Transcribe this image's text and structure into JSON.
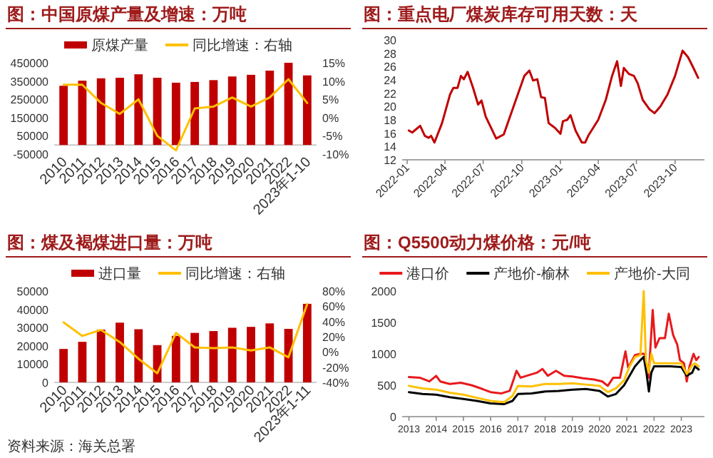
{
  "chart_data": [
    {
      "type": "bar",
      "title": "图：中国原煤产量及增速：万吨",
      "legend": "top",
      "categories": [
        "2010",
        "2011",
        "2012",
        "2013",
        "2014",
        "2015",
        "2016",
        "2017",
        "2018",
        "2019",
        "2020",
        "2021",
        "2022",
        "2023年1-10"
      ],
      "series": [
        {
          "name": "原煤产量",
          "color": "#c00000",
          "values": [
            324000,
            352000,
            365000,
            368000,
            387000,
            368000,
            341000,
            345000,
            355000,
            375000,
            384000,
            407000,
            450000,
            381000
          ]
        },
        {
          "name": "同比增速：右轴",
          "type": "line",
          "axis": "y2",
          "color": "#ffc000",
          "values": [
            9,
            9,
            4,
            1,
            5,
            -5,
            -9,
            2.5,
            3,
            5.5,
            3,
            5.5,
            10.5,
            4
          ]
        }
      ],
      "ylim": [
        -50000,
        450000
      ],
      "yticks": [
        -50000,
        50000,
        150000,
        250000,
        350000,
        450000
      ],
      "y2lim": [
        -10,
        15
      ],
      "y2ticks": [
        {
          "value": -10,
          "label": "-10%"
        },
        {
          "value": -5,
          "label": "-5%"
        },
        {
          "value": 0,
          "label": "0%"
        },
        {
          "value": 5,
          "label": "5%"
        },
        {
          "value": 10,
          "label": "10%"
        },
        {
          "value": 15,
          "label": "15%"
        }
      ]
    },
    {
      "type": "line",
      "title": "图：重点电厂煤炭库存可用天数：天",
      "series": [
        {
          "color": "#c00000",
          "x": [
            "2022-01-05",
            "2022-01-13",
            "2022-02-01",
            "2022-02-12",
            "2022-02-21",
            "2022-02-27",
            "2022-03-07",
            "2022-03-25",
            "2022-04-13",
            "2022-04-21",
            "2022-05-01",
            "2022-05-09",
            "2022-05-16",
            "2022-05-25",
            "2022-06-07",
            "2022-06-19",
            "2022-06-27",
            "2022-07-07",
            "2022-08-01",
            "2022-08-19",
            "2022-09-13",
            "2022-10-07",
            "2022-10-19",
            "2022-10-28",
            "2022-11-07",
            "2022-11-16",
            "2022-11-25",
            "2022-12-04",
            "2022-12-19",
            "2023-01-01",
            "2023-01-07",
            "2023-01-17",
            "2023-01-25",
            "2023-02-06",
            "2023-02-21",
            "2023-03-01",
            "2023-03-09",
            "2023-04-01",
            "2023-04-19",
            "2023-05-04",
            "2023-05-16",
            "2023-05-25",
            "2023-06-01",
            "2023-06-13",
            "2023-06-25",
            "2023-07-04",
            "2023-07-16",
            "2023-08-01",
            "2023-08-13",
            "2023-08-27",
            "2023-09-13",
            "2023-10-01",
            "2023-10-19",
            "2023-11-01",
            "2023-11-13",
            "2023-11-25"
          ],
          "values": [
            16.4,
            16.1,
            17.1,
            15.6,
            15.3,
            15.6,
            14.6,
            17.5,
            21.8,
            22.8,
            22.8,
            24.6,
            24.1,
            25.2,
            22.8,
            20.3,
            20.9,
            18.5,
            15.2,
            15.8,
            20.3,
            24.6,
            25.4,
            23.9,
            24.1,
            21.4,
            21.3,
            17.5,
            16.8,
            15.9,
            17.8,
            18.0,
            18.7,
            16.4,
            14.6,
            14.6,
            15.7,
            18.0,
            21.0,
            24.6,
            26.8,
            23.1,
            25.8,
            24.9,
            24.6,
            23.5,
            21.0,
            19.6,
            19.0,
            20.0,
            21.8,
            24.6,
            28.4,
            27.4,
            25.9,
            24.3
          ]
        }
      ],
      "xlim": [
        "2021-12-20",
        "2023-12-10"
      ],
      "xticks": [
        {
          "value": "2022-01",
          "label": "2022-01"
        },
        {
          "value": "2022-04",
          "label": "2022-04"
        },
        {
          "value": "2022-07",
          "label": "2022-07"
        },
        {
          "value": "2022-10",
          "label": "2022-10"
        },
        {
          "value": "2023-01",
          "label": "2023-01"
        },
        {
          "value": "2023-04",
          "label": "2023-04"
        },
        {
          "value": "2023-07",
          "label": "2023-07"
        },
        {
          "value": "2023-10",
          "label": "2023-10"
        }
      ],
      "ylim": [
        12,
        30
      ],
      "yticks": [
        12,
        14,
        16,
        18,
        20,
        22,
        24,
        26,
        28,
        30
      ]
    },
    {
      "type": "bar",
      "title": "图：煤及褐煤进口量：万吨",
      "legend": "top",
      "annotations": [
        "资料来源：海关总署"
      ],
      "categories": [
        "2010",
        "2011",
        "2012",
        "2013",
        "2014",
        "2015",
        "2016",
        "2017",
        "2018",
        "2019",
        "2020",
        "2021",
        "2022",
        "2023年1-11"
      ],
      "series": [
        {
          "name": "进口量",
          "color": "#c00000",
          "values": [
            18300,
            22200,
            28900,
            32700,
            29100,
            20400,
            25500,
            27100,
            28100,
            29900,
            30400,
            32300,
            29300,
            43000
          ]
        },
        {
          "name": "同比增速：右轴",
          "type": "line",
          "axis": "y2",
          "color": "#ffc000",
          "values": [
            39,
            21,
            29,
            13,
            -9,
            -28,
            25,
            6,
            5,
            6,
            2,
            6,
            -7,
            63
          ]
        }
      ],
      "ylim": [
        0,
        50000
      ],
      "yticks": [
        0,
        10000,
        20000,
        30000,
        40000,
        50000
      ],
      "y2lim": [
        -40,
        80
      ],
      "y2ticks": [
        {
          "value": -40,
          "label": "-40%"
        },
        {
          "value": -20,
          "label": "-20%"
        },
        {
          "value": 0,
          "label": "0%"
        },
        {
          "value": 20,
          "label": "20%"
        },
        {
          "value": 40,
          "label": "40%"
        },
        {
          "value": 60,
          "label": "60%"
        },
        {
          "value": 80,
          "label": "80%"
        }
      ]
    },
    {
      "type": "line",
      "title": "图：Q5500动力煤价格：元/吨",
      "legend": "top",
      "series": [
        {
          "name": "港口价",
          "color": "#e8191b",
          "x": [
            2013.0,
            2013.4,
            2013.75,
            2014.0,
            2014.15,
            2014.5,
            2014.9,
            2015.3,
            2015.7,
            2016.0,
            2016.4,
            2016.7,
            2016.85,
            2016.95,
            2017.1,
            2017.4,
            2017.7,
            2017.9,
            2018.1,
            2018.4,
            2018.7,
            2019.0,
            2019.4,
            2019.8,
            2020.1,
            2020.3,
            2020.5,
            2020.75,
            2020.95,
            2021.05,
            2021.3,
            2021.5,
            2021.65,
            2021.8,
            2021.95,
            2022.05,
            2022.2,
            2022.4,
            2022.54,
            2022.7,
            2022.85,
            2022.95,
            2023.1,
            2023.2,
            2023.3,
            2023.45,
            2023.55,
            2023.64
          ],
          "values": [
            630,
            620,
            560,
            650,
            560,
            520,
            540,
            500,
            440,
            390,
            370,
            410,
            600,
            730,
            620,
            660,
            700,
            760,
            650,
            730,
            650,
            640,
            610,
            590,
            560,
            490,
            620,
            620,
            1040,
            780,
            980,
            1000,
            1000,
            620,
            1700,
            1100,
            1250,
            1250,
            1640,
            1300,
            1150,
            900,
            850,
            560,
            800,
            1000,
            900,
            950
          ]
        },
        {
          "name": "产地价-榆林",
          "color": "#000000",
          "x": [
            2013.0,
            2013.5,
            2014.0,
            2014.5,
            2015.0,
            2015.5,
            2016.0,
            2016.5,
            2016.8,
            2017.0,
            2017.5,
            2018.0,
            2018.5,
            2019.0,
            2019.5,
            2020.0,
            2020.3,
            2020.6,
            2020.9,
            2021.1,
            2021.3,
            2021.5,
            2021.62,
            2021.72,
            2021.81,
            2021.9,
            2022.0,
            2022.2,
            2022.6,
            2023.0,
            2023.2,
            2023.4,
            2023.5,
            2023.64
          ],
          "values": [
            390,
            360,
            350,
            310,
            280,
            250,
            210,
            200,
            250,
            360,
            370,
            400,
            410,
            430,
            440,
            410,
            320,
            360,
            500,
            650,
            800,
            900,
            950,
            700,
            400,
            700,
            800,
            800,
            800,
            790,
            650,
            700,
            800,
            750
          ]
        },
        {
          "name": "产地价-大同",
          "color": "#ffc000",
          "x": [
            2013.0,
            2013.5,
            2014.0,
            2014.5,
            2015.0,
            2015.5,
            2016.0,
            2016.5,
            2016.8,
            2017.0,
            2017.5,
            2018.0,
            2018.5,
            2019.0,
            2019.5,
            2020.0,
            2020.3,
            2020.6,
            2020.9,
            2021.1,
            2021.3,
            2021.5,
            2021.62,
            2021.7,
            2021.8,
            2021.9,
            2022.0,
            2022.2,
            2022.6,
            2023.0,
            2023.2,
            2023.4,
            2023.5,
            2023.64
          ],
          "values": [
            490,
            450,
            430,
            380,
            350,
            300,
            250,
            230,
            330,
            490,
            480,
            520,
            520,
            530,
            510,
            490,
            390,
            450,
            580,
            800,
            950,
            980,
            2000,
            900,
            700,
            1000,
            850,
            850,
            850,
            850,
            680,
            820,
            850,
            800
          ]
        }
      ],
      "xlim": [
        2012.75,
        2023.85
      ],
      "xticks": [
        2013,
        2014,
        2015,
        2016,
        2017,
        2018,
        2019,
        2020,
        2021,
        2022,
        2023
      ],
      "ylim": [
        0,
        2000
      ],
      "yticks": [
        0,
        500,
        1000,
        1500,
        2000
      ]
    }
  ]
}
